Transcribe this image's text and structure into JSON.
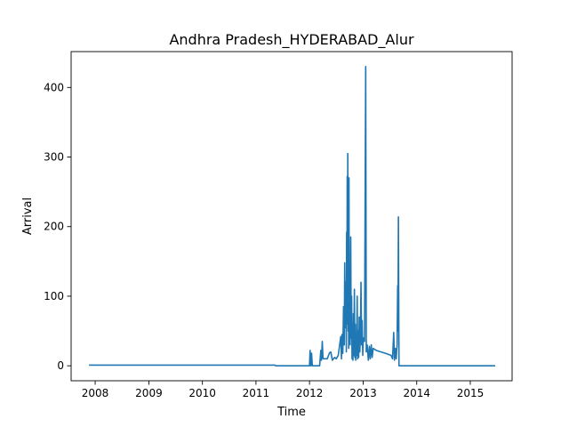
{
  "chart_data": {
    "type": "line",
    "title": "Andhra Pradesh_HYDERABAD_Alur",
    "xlabel": "Time",
    "ylabel": "Arrival",
    "x_ticks": [
      "2008",
      "2009",
      "2010",
      "2011",
      "2012",
      "2013",
      "2014",
      "2015"
    ],
    "y_ticks": [
      0,
      100,
      200,
      300,
      400
    ],
    "xlim": [
      "2007-07-21",
      "2015-10-13"
    ],
    "ylim": [
      -21.5,
      451.5
    ],
    "grid": false,
    "series": [
      {
        "color": "#1f77b4",
        "points": [
          [
            "2007-11-20",
            1
          ],
          [
            "2011-05-10",
            1
          ],
          [
            "2011-05-15",
            0
          ],
          [
            "2012-01-01",
            0
          ],
          [
            "2012-01-05",
            22
          ],
          [
            "2012-01-10",
            0
          ],
          [
            "2012-01-15",
            18
          ],
          [
            "2012-01-20",
            0
          ],
          [
            "2012-03-10",
            0
          ],
          [
            "2012-03-18",
            22
          ],
          [
            "2012-03-22",
            8
          ],
          [
            "2012-03-28",
            35
          ],
          [
            "2012-04-02",
            10
          ],
          [
            "2012-05-01",
            10
          ],
          [
            "2012-05-15",
            18
          ],
          [
            "2012-05-25",
            20
          ],
          [
            "2012-06-05",
            8
          ],
          [
            "2012-06-20",
            12
          ],
          [
            "2012-07-01",
            10
          ],
          [
            "2012-07-15",
            15
          ],
          [
            "2012-08-01",
            42
          ],
          [
            "2012-08-06",
            10
          ],
          [
            "2012-08-10",
            45
          ],
          [
            "2012-08-15",
            18
          ],
          [
            "2012-08-20",
            85
          ],
          [
            "2012-08-25",
            30
          ],
          [
            "2012-08-28",
            148
          ],
          [
            "2012-09-01",
            55
          ],
          [
            "2012-09-05",
            120
          ],
          [
            "2012-09-08",
            20
          ],
          [
            "2012-09-10",
            192
          ],
          [
            "2012-09-12",
            60
          ],
          [
            "2012-09-14",
            272
          ],
          [
            "2012-09-16",
            100
          ],
          [
            "2012-09-18",
            305
          ],
          [
            "2012-09-20",
            50
          ],
          [
            "2012-09-22",
            140
          ],
          [
            "2012-09-24",
            25
          ],
          [
            "2012-09-26",
            270
          ],
          [
            "2012-09-28",
            60
          ],
          [
            "2012-10-01",
            140
          ],
          [
            "2012-10-04",
            30
          ],
          [
            "2012-10-08",
            185
          ],
          [
            "2012-10-11",
            40
          ],
          [
            "2012-10-14",
            100
          ],
          [
            "2012-10-17",
            10
          ],
          [
            "2012-10-20",
            60
          ],
          [
            "2012-10-23",
            8
          ],
          [
            "2012-10-26",
            75
          ],
          [
            "2012-10-29",
            15
          ],
          [
            "2012-11-02",
            110
          ],
          [
            "2012-11-05",
            12
          ],
          [
            "2012-11-08",
            60
          ],
          [
            "2012-11-11",
            8
          ],
          [
            "2012-11-14",
            40
          ],
          [
            "2012-11-17",
            15
          ],
          [
            "2012-11-21",
            100
          ],
          [
            "2012-11-24",
            10
          ],
          [
            "2012-11-27",
            50
          ],
          [
            "2012-12-01",
            12
          ],
          [
            "2012-12-05",
            70
          ],
          [
            "2012-12-09",
            20
          ],
          [
            "2012-12-13",
            45
          ],
          [
            "2012-12-17",
            120
          ],
          [
            "2012-12-21",
            30
          ],
          [
            "2012-12-25",
            65
          ],
          [
            "2012-12-29",
            15
          ],
          [
            "2013-01-02",
            40
          ],
          [
            "2013-01-10",
            35
          ],
          [
            "2013-01-18",
            430
          ],
          [
            "2013-01-22",
            20
          ],
          [
            "2013-01-28",
            30
          ],
          [
            "2013-02-05",
            8
          ],
          [
            "2013-02-12",
            28
          ],
          [
            "2013-02-18",
            10
          ],
          [
            "2013-02-25",
            30
          ],
          [
            "2013-03-03",
            12
          ],
          [
            "2013-03-10",
            25
          ],
          [
            "2013-04-01",
            22
          ],
          [
            "2013-06-01",
            18
          ],
          [
            "2013-07-10",
            15
          ],
          [
            "2013-07-20",
            10
          ],
          [
            "2013-07-28",
            48
          ],
          [
            "2013-08-02",
            8
          ],
          [
            "2013-08-08",
            25
          ],
          [
            "2013-08-14",
            10
          ],
          [
            "2013-08-20",
            30
          ],
          [
            "2013-08-24",
            115
          ],
          [
            "2013-08-26",
            50
          ],
          [
            "2013-08-29",
            214
          ],
          [
            "2013-09-02",
            0
          ],
          [
            "2015-06-20",
            0
          ]
        ]
      }
    ]
  }
}
